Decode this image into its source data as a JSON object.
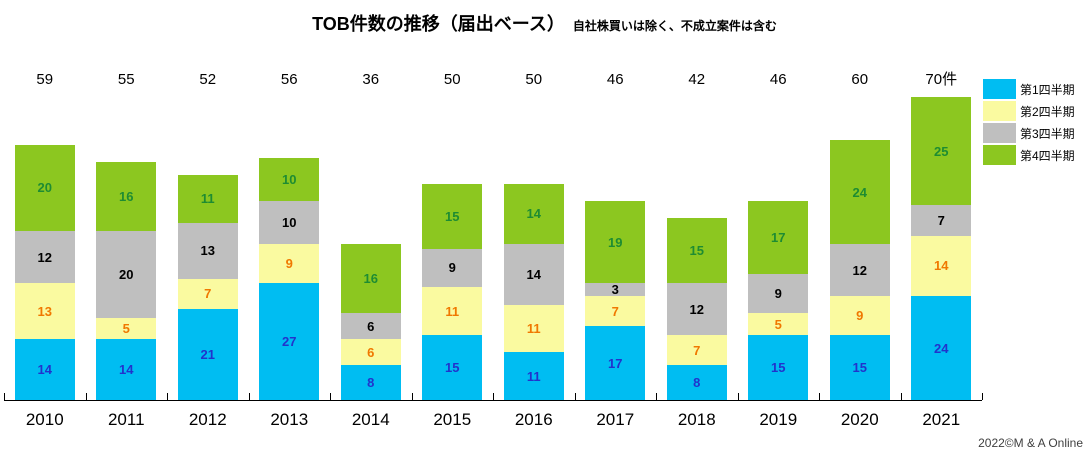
{
  "title": "TOB件数の推移（届出ベース）",
  "subtitle": "自社株買いは除く、不成立案件は含む",
  "copyright": "2022©M & A Online",
  "legend": {
    "position": "top-right",
    "items": [
      {
        "label": "第1四半期",
        "color": "#00BDF2"
      },
      {
        "label": "第2四半期",
        "color": "#FAFAA0"
      },
      {
        "label": "第3四半期",
        "color": "#BFBFBF"
      },
      {
        "label": "第4四半期",
        "color": "#8CC720"
      }
    ]
  },
  "chart_data": {
    "type": "bar",
    "stacked": true,
    "title": "TOB件数の推移（届出ベース）",
    "subtitle": "自社株買いは除く、不成立案件は含む",
    "categories": [
      "2010",
      "2011",
      "2012",
      "2013",
      "2014",
      "2015",
      "2016",
      "2017",
      "2018",
      "2019",
      "2020",
      "2021"
    ],
    "totals": [
      "59",
      "55",
      "52",
      "56",
      "36",
      "50",
      "50",
      "46",
      "42",
      "46",
      "60",
      "70件"
    ],
    "series": [
      {
        "name": "第1四半期",
        "color": "#00BDF2",
        "label_color": "#2233CC",
        "values": [
          14,
          14,
          21,
          27,
          8,
          15,
          11,
          17,
          8,
          15,
          15,
          24
        ]
      },
      {
        "name": "第2四半期",
        "color": "#FAFAA0",
        "label_color": "#F07800",
        "values": [
          13,
          5,
          7,
          9,
          6,
          11,
          11,
          7,
          7,
          5,
          9,
          14
        ]
      },
      {
        "name": "第3四半期",
        "color": "#BFBFBF",
        "label_color": "#000000",
        "values": [
          12,
          20,
          13,
          10,
          6,
          9,
          14,
          3,
          12,
          9,
          12,
          7
        ]
      },
      {
        "name": "第4四半期",
        "color": "#8CC720",
        "label_color": "#1E8C32",
        "values": [
          20,
          16,
          11,
          10,
          16,
          15,
          14,
          19,
          15,
          17,
          24,
          25
        ]
      }
    ],
    "ylim": [
      0,
      70
    ],
    "grid": false,
    "axis_color": "#000000",
    "legend_position": "top-right"
  }
}
